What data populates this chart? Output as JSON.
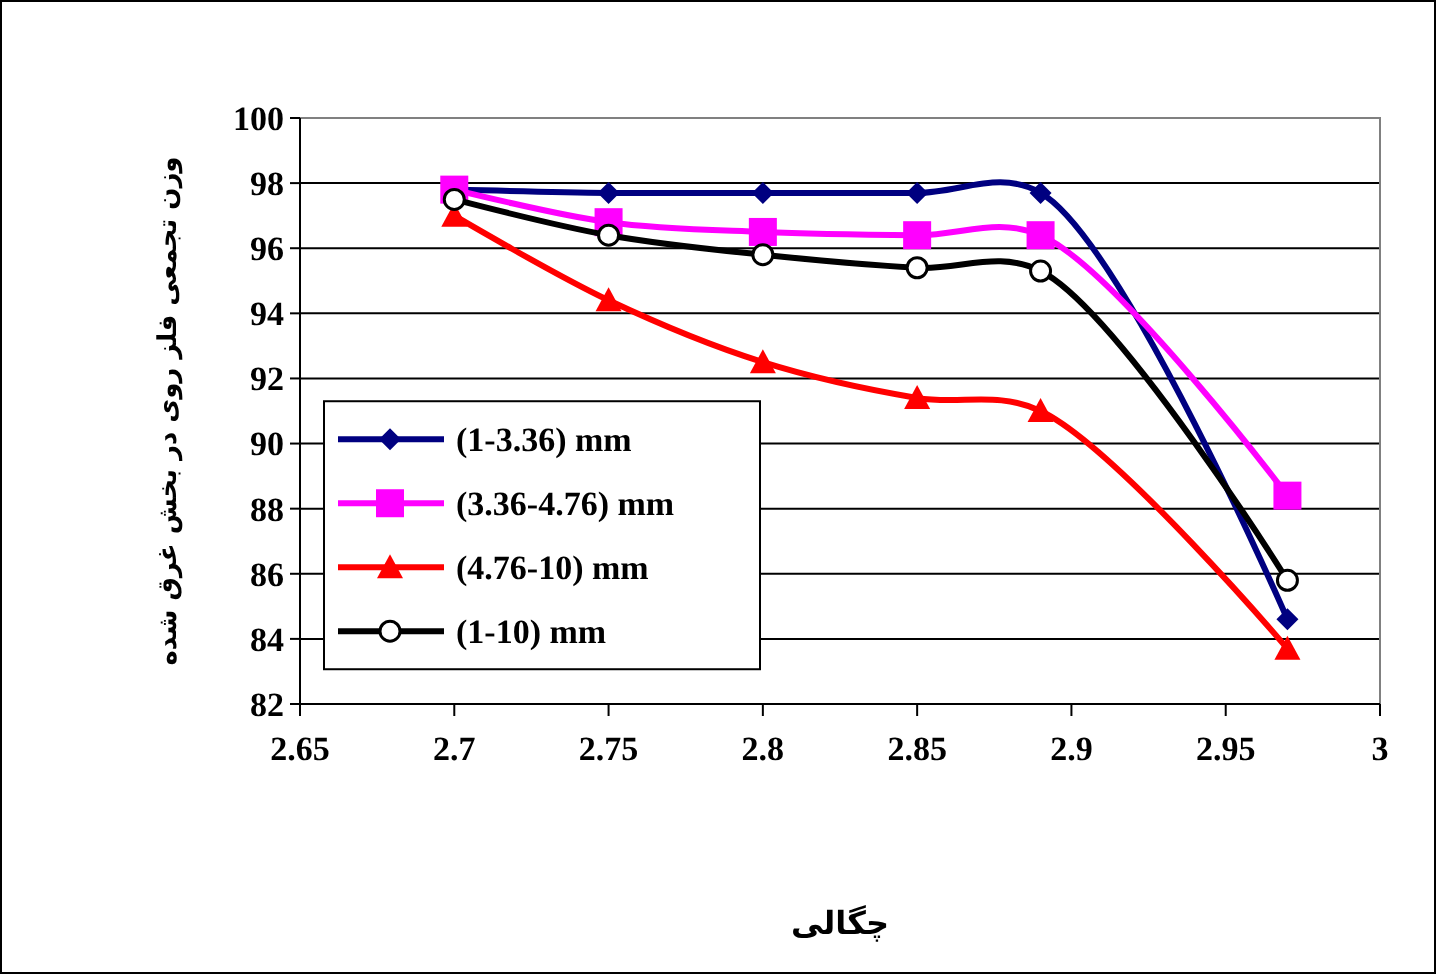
{
  "chart_data": {
    "type": "line",
    "xlabel": "چگالی",
    "ylabel": "وزن تجمعی فلز روی در بخش غرق شده",
    "x": [
      2.7,
      2.75,
      2.8,
      2.85,
      2.89,
      2.97
    ],
    "series": [
      {
        "name": "(1-3.36) mm",
        "color": "#000080",
        "marker": "diamond",
        "values": [
          97.8,
          97.7,
          97.7,
          97.7,
          97.7,
          84.6
        ]
      },
      {
        "name": "(3.36-4.76) mm",
        "color": "#ff00ff",
        "marker": "square",
        "values": [
          97.8,
          96.8,
          96.5,
          96.4,
          96.4,
          88.4
        ]
      },
      {
        "name": "(4.76-10) mm",
        "color": "#ff0000",
        "marker": "triangle",
        "values": [
          97.0,
          94.4,
          92.5,
          91.4,
          91.0,
          83.7
        ]
      },
      {
        "name": "(1-10) mm",
        "color": "#000000",
        "marker": "circle",
        "values": [
          97.5,
          96.4,
          95.8,
          95.4,
          95.3,
          85.8
        ]
      }
    ],
    "xlim": [
      2.65,
      3
    ],
    "xticks": [
      2.65,
      2.7,
      2.75,
      2.8,
      2.85,
      2.9,
      2.95,
      3
    ],
    "ylim": [
      82,
      100
    ],
    "yticks": [
      82,
      84,
      86,
      88,
      90,
      92,
      94,
      96,
      98,
      100
    ],
    "grid": "y",
    "legend": "left",
    "line_style": "solid"
  }
}
